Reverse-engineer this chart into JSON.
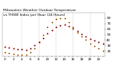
{
  "title": "Milwaukee Weather Outdoor Temperature vs THSW Index per Hour (24 Hours)",
  "title_line1": "Milwaukee Weather Outdoor Temperature",
  "title_line2": "vs THSW Index per Hour (24 Hours)",
  "temp": [
    28,
    26,
    25,
    24,
    23,
    22,
    25,
    30,
    37,
    44,
    52,
    58,
    63,
    67,
    68,
    65,
    61,
    56,
    51,
    46,
    42,
    39,
    36,
    33
  ],
  "thsw": [
    18,
    16,
    15,
    14,
    13,
    13,
    17,
    25,
    36,
    50,
    63,
    72,
    78,
    80,
    79,
    72,
    63,
    54,
    46,
    40,
    34,
    29,
    25,
    21
  ],
  "hours": [
    0,
    1,
    2,
    3,
    4,
    5,
    6,
    7,
    8,
    9,
    10,
    11,
    12,
    13,
    14,
    15,
    16,
    17,
    18,
    19,
    20,
    21,
    22,
    23
  ],
  "temp_color": "#cc0000",
  "thsw_color": "#ff8800",
  "dot_color": "#111111",
  "bg_color": "#ffffff",
  "grid_color": "#999999",
  "ylim": [
    10,
    90
  ],
  "xlim": [
    -0.5,
    23.5
  ],
  "title_fontsize": 3.2,
  "tick_fontsize": 3.0,
  "ytick_right": true,
  "xtick_labels_every": 2
}
